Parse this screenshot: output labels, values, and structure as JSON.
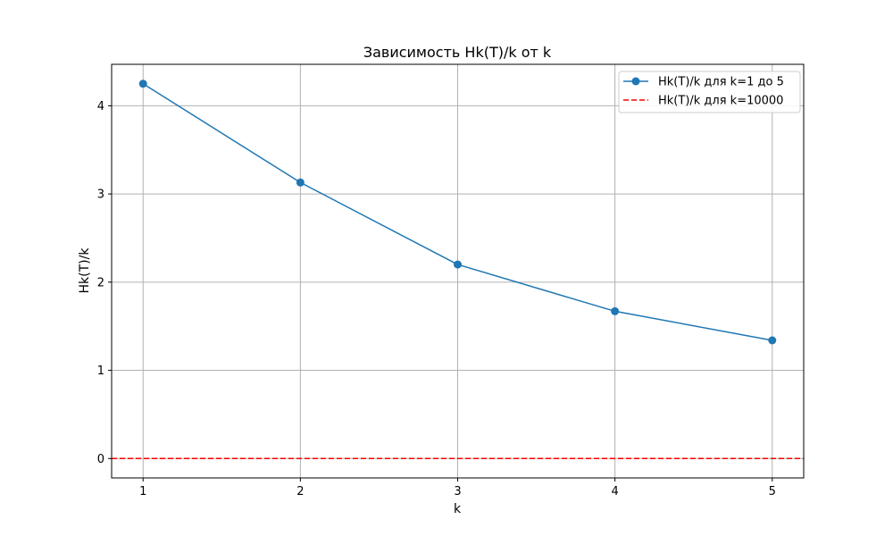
{
  "chart_data": {
    "type": "line",
    "title": "Зависимость Hk(T)/k от k",
    "xlabel": "k",
    "ylabel": "Hk(T)/k",
    "xlim": [
      0.8,
      5.2
    ],
    "ylim": [
      -0.22,
      4.47
    ],
    "xticks": [
      1,
      2,
      3,
      4,
      5
    ],
    "xtick_labels": [
      "1",
      "2",
      "3",
      "4",
      "5"
    ],
    "yticks": [
      0,
      1,
      2,
      3,
      4
    ],
    "ytick_labels": [
      "0",
      "1",
      "2",
      "3",
      "4"
    ],
    "grid": true,
    "legend_position": "top-right",
    "series": [
      {
        "name": "Hk(T)/k для k=1 до 5",
        "kind": "line-markers",
        "color": "#1f77b4",
        "x": [
          1,
          2,
          3,
          4,
          5
        ],
        "y": [
          4.25,
          3.13,
          2.2,
          1.67,
          1.34
        ]
      },
      {
        "name": "Hk(T)/k для k=10000",
        "kind": "hline-dashed",
        "color": "#ff0000",
        "y": 0.0
      }
    ]
  }
}
